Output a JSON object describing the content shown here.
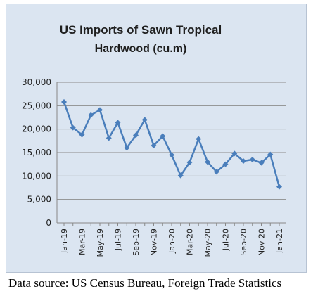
{
  "chart_data": {
    "type": "line",
    "title": [
      "US Imports of Sawn Tropical",
      "Hardwood (cu.m)"
    ],
    "xlabel": "",
    "ylabel": "",
    "ylim": [
      0,
      30000
    ],
    "yticks": [
      "0",
      "5,000",
      "10,000",
      "15,000",
      "20,000",
      "25,000",
      "30,000"
    ],
    "ytick_values": [
      0,
      5000,
      10000,
      15000,
      20000,
      25000,
      30000
    ],
    "grid": true,
    "x": [
      "Jan-19",
      "Feb-19",
      "Mar-19",
      "Apr-19",
      "May-19",
      "Jun-19",
      "Jul-19",
      "Aug-19",
      "Sep-19",
      "Oct-19",
      "Nov-19",
      "Dec-19",
      "Jan-20",
      "Feb-20",
      "Mar-20",
      "Apr-20",
      "May-20",
      "Jun-20",
      "Jul-20",
      "Aug-20",
      "Sep-20",
      "Oct-20",
      "Nov-20",
      "Dec-20",
      "Jan-21"
    ],
    "xtick_labels": [
      "Jan-19",
      "",
      "Mar-19",
      "",
      "May-19",
      "",
      "Jul-19",
      "",
      "Sep-19",
      "",
      "Nov-19",
      "",
      "Jan-20",
      "",
      "Mar-20",
      "",
      "May-20",
      "",
      "Jul-20",
      "",
      "Sep-20",
      "",
      "Nov-20",
      "",
      "Jan-21"
    ],
    "series": [
      {
        "values": [
          25800,
          20300,
          18800,
          23000,
          24100,
          18100,
          21400,
          16000,
          18700,
          22000,
          16500,
          18500,
          14500,
          10100,
          12900,
          17900,
          13000,
          10900,
          12500,
          14800,
          13200,
          13500,
          12800,
          14600,
          7700
        ],
        "color": "#4a7ebb"
      }
    ]
  },
  "source_note": "Data source: US Census Bureau, Foreign Trade Statistics"
}
